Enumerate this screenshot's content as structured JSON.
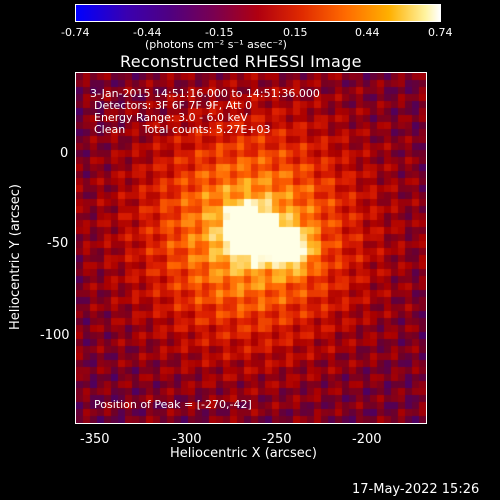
{
  "colorbar": {
    "ticks": [
      "-0.74",
      "-0.44",
      "-0.15",
      "0.15",
      "0.44",
      "0.74"
    ],
    "units": "(photons cm⁻² s⁻¹ asec⁻²)"
  },
  "title": "Reconstructed RHESSI Image",
  "info": {
    "line1": "3-Jan-2015 14:51:16.000 to 14:51:36.000",
    "line2": "Detectors: 3F 6F 7F 9F, Att 0",
    "line3": "Energy Range: 3.0 - 6.0 keV",
    "line4": "Clean     Total counts: 5.27E+03"
  },
  "peak_text": "Position of Peak = [-270,-42]",
  "x_ticks": [
    "-350",
    "-300",
    "-250",
    "-200"
  ],
  "y_ticks": [
    "0",
    "-50",
    "-100"
  ],
  "xlabel": "Heliocentric X (arcsec)",
  "ylabel": "Heliocentric Y (arcsec)",
  "datestamp": "17-May-2022 15:26",
  "chart_data": {
    "type": "heatmap",
    "title": "Reconstructed RHESSI Image",
    "xlabel": "Heliocentric X (arcsec)",
    "ylabel": "Heliocentric Y (arcsec)",
    "xlim": [
      -365,
      -170
    ],
    "ylim": [
      -150,
      45
    ],
    "colorbar_range": [
      -0.74,
      0.74
    ],
    "peak": [
      -270,
      -42
    ]
  }
}
